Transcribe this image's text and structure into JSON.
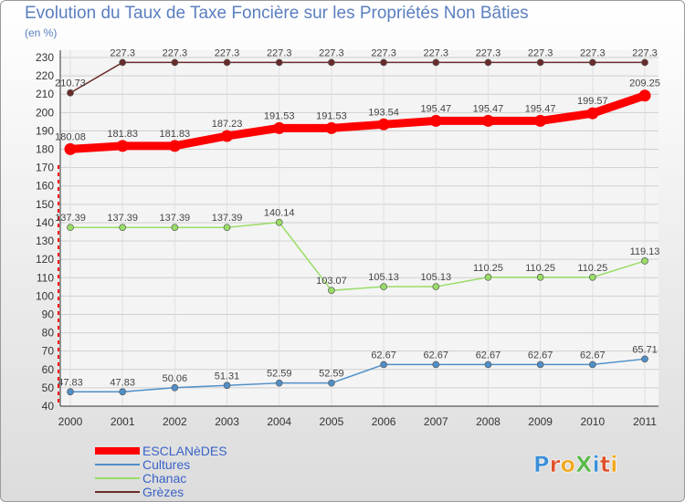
{
  "chart_data": {
    "type": "line",
    "title": "Evolution du Taux de Taxe Foncière sur les Propriétés Non Bâties",
    "ylabel": "(en %)",
    "xlabel": "",
    "ylim": [
      40,
      230
    ],
    "yticks": [
      40,
      50,
      60,
      70,
      80,
      90,
      100,
      110,
      120,
      130,
      140,
      150,
      160,
      170,
      180,
      190,
      200,
      210,
      220,
      230
    ],
    "categories": [
      "2000",
      "2001",
      "2002",
      "2003",
      "2004",
      "2005",
      "2006",
      "2007",
      "2008",
      "2009",
      "2010",
      "2011"
    ],
    "series": [
      {
        "name": "Grèzes",
        "color": "#6b2a2a",
        "values": [
          210.73,
          227.3,
          227.3,
          227.3,
          227.3,
          227.3,
          227.3,
          227.3,
          227.3,
          227.3,
          227.3,
          227.3
        ],
        "labels": [
          "210.73",
          "227.3",
          "227.3",
          "227.3",
          "227.3",
          "227.3",
          "227.3",
          "227.3",
          "227.3",
          "227.3",
          "227.3",
          "227.3"
        ]
      },
      {
        "name": "ESCLANèDES",
        "color": "#ff0000",
        "values": [
          180.08,
          181.83,
          181.83,
          187.23,
          191.53,
          191.53,
          193.54,
          195.47,
          195.47,
          195.47,
          199.57,
          209.25
        ],
        "labels": [
          "180.08",
          "181.83",
          "181.83",
          "187.23",
          "191.53",
          "191.53",
          "193.54",
          "195.47",
          "195.47",
          "195.47",
          "199.57",
          "209.25"
        ]
      },
      {
        "name": "Chanac",
        "color": "#99dd66",
        "values": [
          137.39,
          137.39,
          137.39,
          137.39,
          140.14,
          103.07,
          105.13,
          105.13,
          110.25,
          110.25,
          110.25,
          119.13
        ],
        "labels": [
          "137.39",
          "137.39",
          "137.39",
          "137.39",
          "140.14",
          "103.07",
          "105.13",
          "105.13",
          "110.25",
          "110.25",
          "110.25",
          "119.13"
        ]
      },
      {
        "name": "Cultures",
        "color": "#4f8fc8",
        "values": [
          47.83,
          47.83,
          50.06,
          51.31,
          52.59,
          52.59,
          62.67,
          62.67,
          62.67,
          62.67,
          62.67,
          65.71
        ],
        "labels": [
          "47.83",
          "47.83",
          "50.06",
          "51.31",
          "52.59",
          "52.59",
          "62.67",
          "62.67",
          "62.67",
          "62.67",
          "62.67",
          "65.71"
        ]
      }
    ],
    "legend": {
      "placement": "bottom-left",
      "order": [
        "ESCLANèDES",
        "Cultures",
        "Chanac",
        "Grèzes"
      ]
    }
  },
  "logo": {
    "text": "ProXiti"
  }
}
